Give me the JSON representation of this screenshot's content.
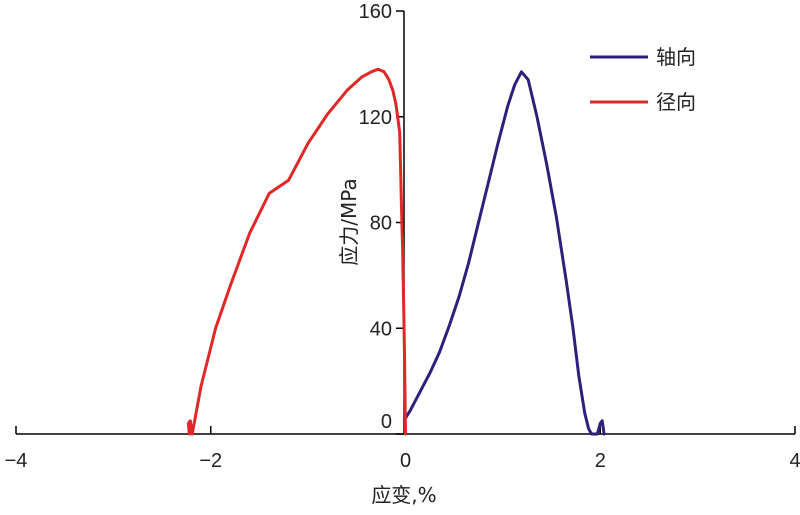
{
  "chart_data": {
    "type": "line",
    "xlabel": "应变,%",
    "ylabel": "应力/MPa",
    "xlim": [
      -4,
      4
    ],
    "ylim": [
      0,
      160
    ],
    "xticks": [
      -4,
      -2,
      0,
      2,
      4
    ],
    "yticks": [
      0,
      40,
      80,
      120,
      160
    ],
    "xtick_labels": [
      "−4",
      "−2",
      "0",
      "2",
      "4"
    ],
    "ytick_labels": [
      "0",
      "40",
      "80",
      "120",
      "160"
    ],
    "grid": false,
    "legend_position": "top-right",
    "series": [
      {
        "name": "轴向",
        "color": "#2e1f7a",
        "x": [
          0.0,
          0.05,
          0.15,
          0.25,
          0.35,
          0.45,
          0.55,
          0.65,
          0.75,
          0.85,
          0.95,
          1.05,
          1.12,
          1.19,
          1.26,
          1.35,
          1.45,
          1.55,
          1.65,
          1.72,
          1.78,
          1.84,
          1.88,
          1.91,
          1.94,
          1.97,
          2.0,
          2.02,
          2.04
        ],
        "y": [
          6,
          9,
          16,
          23,
          31,
          41,
          52,
          65,
          80,
          95,
          110,
          124,
          132,
          137,
          134,
          120,
          102,
          82,
          58,
          40,
          22,
          8,
          2,
          0,
          0,
          0,
          4,
          5,
          0
        ]
      },
      {
        "name": "径向",
        "color": "#e02828",
        "x": [
          -2.22,
          -2.23,
          -2.21,
          -2.19,
          -2.1,
          -1.95,
          -1.8,
          -1.6,
          -1.4,
          -1.2,
          -1.0,
          -0.8,
          -0.6,
          -0.45,
          -0.35,
          -0.28,
          -0.22,
          -0.17,
          -0.13,
          -0.1,
          -0.08,
          -0.06,
          -0.05,
          -0.04,
          -0.03,
          -0.02,
          -0.01,
          0.0
        ],
        "y": [
          0,
          4,
          5,
          0,
          18,
          40,
          56,
          76,
          91,
          96,
          110,
          121,
          130,
          135,
          137,
          138,
          137,
          134,
          130,
          125,
          120,
          114,
          100,
          84,
          70,
          50,
          30,
          0
        ]
      }
    ]
  }
}
